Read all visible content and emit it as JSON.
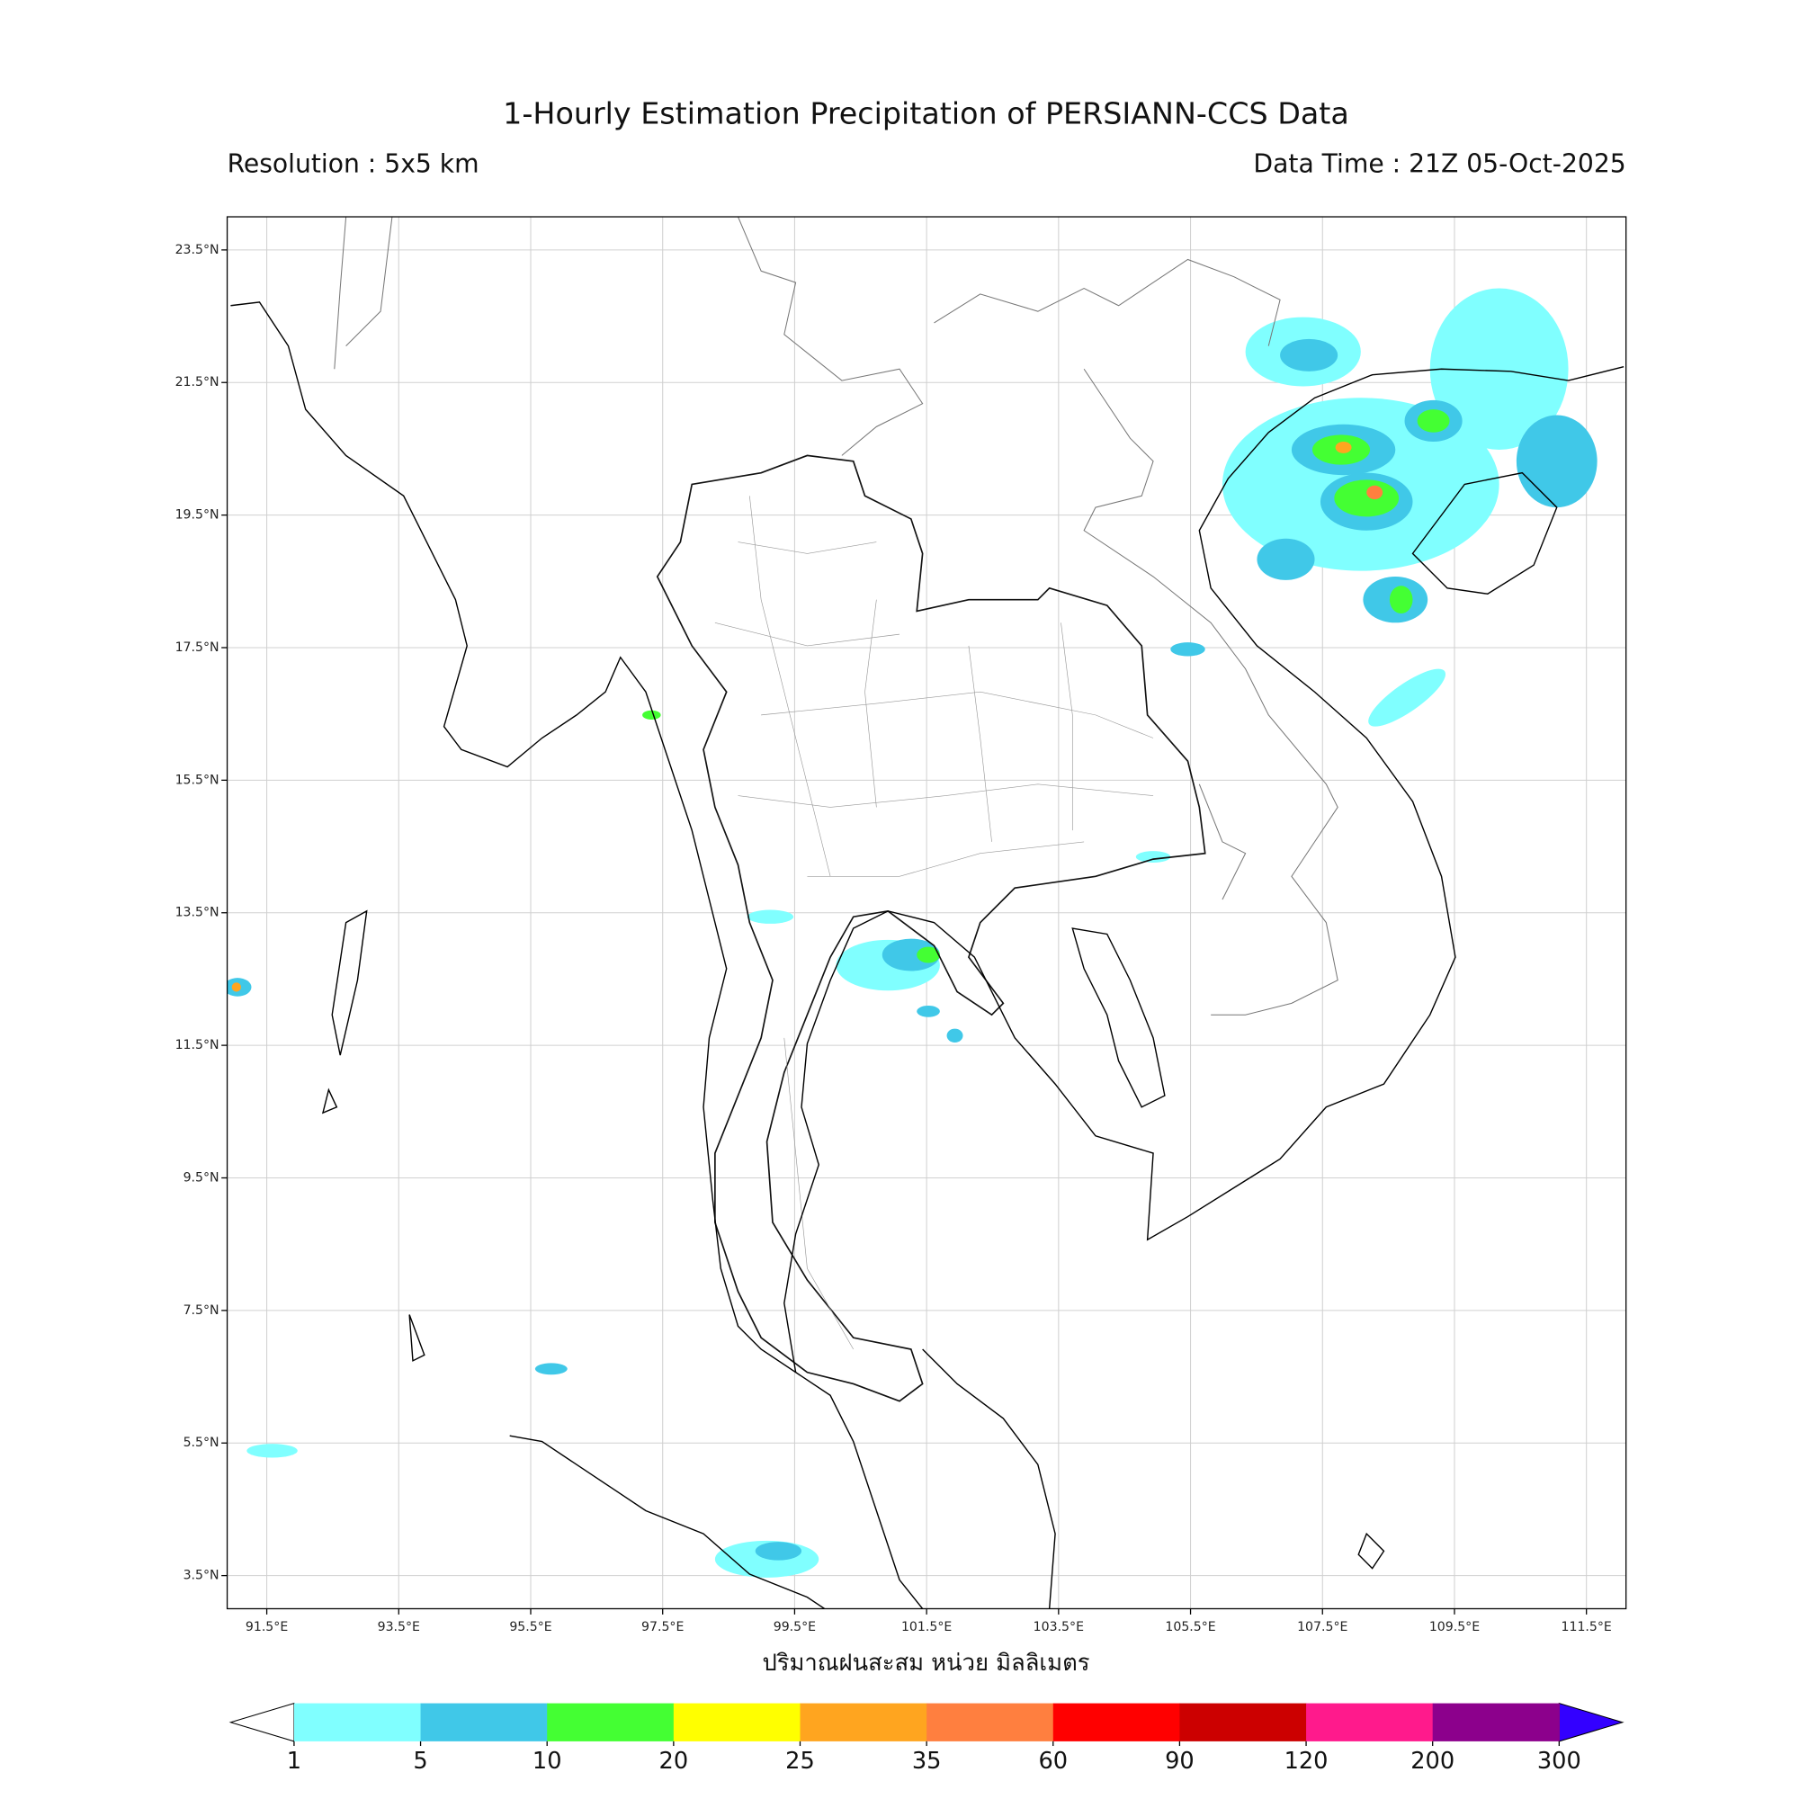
{
  "title": "1-Hourly Estimation Precipitation of PERSIANN-CCS Data",
  "resolution": "Resolution : 5x5 km",
  "data_time": "Data Time : 21Z 05-Oct-2025",
  "map": {
    "xlim": [
      90.9,
      112.1
    ],
    "ylim": [
      3.0,
      24.0
    ],
    "xticks": [
      {
        "value": 91.5,
        "label": "91.5°E"
      },
      {
        "value": 93.5,
        "label": "93.5°E"
      },
      {
        "value": 95.5,
        "label": "95.5°E"
      },
      {
        "value": 97.5,
        "label": "97.5°E"
      },
      {
        "value": 99.5,
        "label": "99.5°E"
      },
      {
        "value": 101.5,
        "label": "101.5°E"
      },
      {
        "value": 103.5,
        "label": "103.5°E"
      },
      {
        "value": 105.5,
        "label": "105.5°E"
      },
      {
        "value": 107.5,
        "label": "107.5°E"
      },
      {
        "value": 109.5,
        "label": "109.5°E"
      },
      {
        "value": 111.5,
        "label": "111.5°E"
      }
    ],
    "yticks": [
      {
        "value": 3.5,
        "label": "3.5°N"
      },
      {
        "value": 5.5,
        "label": "5.5°N"
      },
      {
        "value": 7.5,
        "label": "7.5°N"
      },
      {
        "value": 9.5,
        "label": "9.5°N"
      },
      {
        "value": 11.5,
        "label": "11.5°N"
      },
      {
        "value": 13.5,
        "label": "13.5°N"
      },
      {
        "value": 15.5,
        "label": "15.5°N"
      },
      {
        "value": 17.5,
        "label": "17.5°N"
      },
      {
        "value": 19.5,
        "label": "19.5°N"
      },
      {
        "value": 21.5,
        "label": "21.5°N"
      },
      {
        "value": 23.5,
        "label": "23.5°N"
      }
    ],
    "xlabel": "ปริมาณฝนสะสม หน่วย มิลลิเมตร",
    "grid": true
  },
  "colorbar": {
    "ticks": [
      1,
      5,
      10,
      20,
      25,
      35,
      60,
      90,
      120,
      200,
      300
    ],
    "colors": [
      "#80ffff",
      "#40c8e8",
      "#44ff33",
      "#ffff00",
      "#ffa51f",
      "#ff7f3f",
      "#ff0000",
      "#cc0000",
      "#ff1a8c",
      "#8c008c"
    ],
    "under_color": "#ffffff",
    "over_color": "#3300ff"
  }
}
